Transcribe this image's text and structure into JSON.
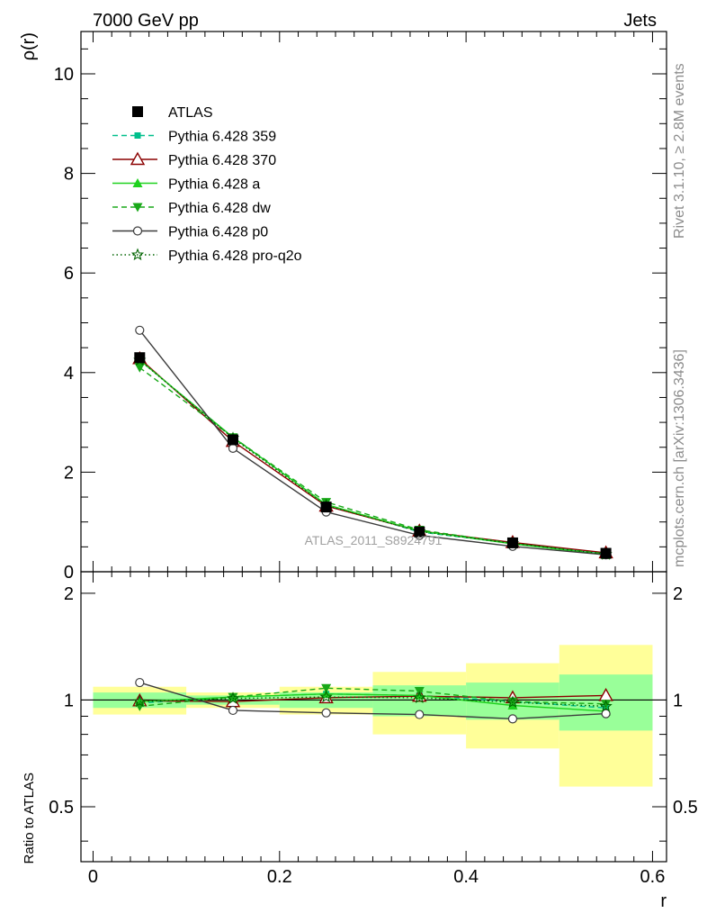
{
  "header": {
    "left_label": "7000 GeV pp",
    "right_label": "Jets"
  },
  "side_labels": {
    "rivet": "Rivet 3.1.10, ≥ 2.8M events",
    "mcplots": "mcplots.cern.ch [arXiv:1306.3436]"
  },
  "watermark": "ATLAS_2011_S8924791",
  "chart_data": [
    {
      "type": "line",
      "panel": "main",
      "ylabel": "ρ(r)",
      "ylim": [
        0,
        10.85
      ],
      "yticks": [
        "0",
        "2",
        "4",
        "6",
        "8",
        "10"
      ],
      "x": [
        0.05,
        0.15,
        0.25,
        0.35,
        0.45,
        0.55
      ],
      "series": [
        {
          "name": "ATLAS",
          "marker": "square",
          "line": "none",
          "color": "#000000",
          "values": [
            4.3,
            2.65,
            1.3,
            0.8,
            0.58,
            0.37
          ]
        },
        {
          "name": "Pythia 6.428 359",
          "marker": "square-small",
          "line": "dashed",
          "color": "#00bf8c",
          "values": [
            4.25,
            2.7,
            1.35,
            0.8,
            0.57,
            0.35
          ]
        },
        {
          "name": "Pythia 6.428 370",
          "marker": "triangle-open",
          "line": "solid",
          "color": "#8b0000",
          "values": [
            4.28,
            2.62,
            1.32,
            0.82,
            0.59,
            0.38
          ]
        },
        {
          "name": "Pythia 6.428 a",
          "marker": "triangle",
          "line": "solid",
          "color": "#1ed21e",
          "values": [
            4.25,
            2.7,
            1.35,
            0.82,
            0.56,
            0.34
          ]
        },
        {
          "name": "Pythia 6.428 dw",
          "marker": "triangle-down",
          "line": "dashed",
          "color": "#18a818",
          "values": [
            4.1,
            2.7,
            1.4,
            0.84,
            0.57,
            0.36
          ]
        },
        {
          "name": "Pythia 6.428 p0",
          "marker": "circle-open",
          "line": "solid",
          "color": "#3c3c3c",
          "values": [
            4.85,
            2.48,
            1.2,
            0.73,
            0.51,
            0.34
          ]
        },
        {
          "name": "Pythia 6.428 pro-q2o",
          "marker": "star-open",
          "line": "dotted",
          "color": "#006400",
          "values": [
            4.25,
            2.68,
            1.33,
            0.81,
            0.57,
            0.35
          ]
        }
      ]
    },
    {
      "type": "line",
      "panel": "ratio",
      "ylabel": "Ratio to ATLAS",
      "xlabel": "r",
      "ylim": [
        0.35,
        2.3
      ],
      "yticks": [
        "0.5",
        "1",
        "2"
      ],
      "xlim": [
        -0.013,
        0.615
      ],
      "xticks": [
        "0",
        "0.2",
        "0.4",
        "0.6"
      ],
      "bands": {
        "bins": [
          [
            0.0,
            0.1
          ],
          [
            0.1,
            0.2
          ],
          [
            0.2,
            0.3
          ],
          [
            0.3,
            0.4
          ],
          [
            0.4,
            0.5
          ],
          [
            0.5,
            0.6
          ]
        ],
        "inner": [
          [
            0.95,
            1.05
          ],
          [
            0.97,
            1.03
          ],
          [
            0.95,
            1.05
          ],
          [
            0.9,
            1.1
          ],
          [
            0.88,
            1.12
          ],
          [
            0.82,
            1.18
          ]
        ],
        "outer": [
          [
            0.91,
            1.09
          ],
          [
            0.95,
            1.05
          ],
          [
            0.91,
            1.09
          ],
          [
            0.8,
            1.2
          ],
          [
            0.73,
            1.27
          ],
          [
            0.57,
            1.43
          ]
        ],
        "inner_color": "#99ff99",
        "outer_color": "#ffff99"
      },
      "x": [
        0.05,
        0.15,
        0.25,
        0.35,
        0.45,
        0.55
      ],
      "series": [
        {
          "name": "Pythia 6.428 359",
          "values": [
            0.98,
            1.02,
            1.04,
            1.03,
            0.99,
            0.95
          ]
        },
        {
          "name": "Pythia 6.428 370",
          "values": [
            0.995,
            0.99,
            1.015,
            1.025,
            1.015,
            1.03
          ]
        },
        {
          "name": "Pythia 6.428 a",
          "values": [
            0.99,
            1.02,
            1.04,
            1.03,
            0.965,
            0.93
          ]
        },
        {
          "name": "Pythia 6.428 dw",
          "values": [
            0.96,
            1.02,
            1.08,
            1.06,
            0.99,
            0.975
          ]
        },
        {
          "name": "Pythia 6.428 p0",
          "values": [
            1.12,
            0.935,
            0.92,
            0.91,
            0.885,
            0.915
          ]
        },
        {
          "name": "Pythia 6.428 pro-q2o",
          "values": [
            0.99,
            1.01,
            1.02,
            1.015,
            0.985,
            0.96
          ]
        }
      ]
    }
  ]
}
